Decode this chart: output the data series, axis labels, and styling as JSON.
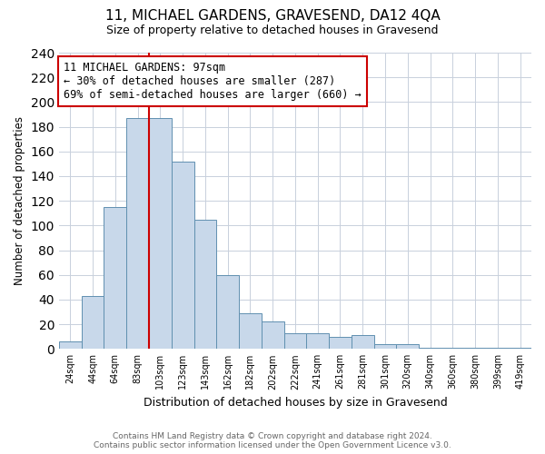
{
  "title": "11, MICHAEL GARDENS, GRAVESEND, DA12 4QA",
  "subtitle": "Size of property relative to detached houses in Gravesend",
  "xlabel": "Distribution of detached houses by size in Gravesend",
  "ylabel": "Number of detached properties",
  "categories": [
    "24sqm",
    "44sqm",
    "64sqm",
    "83sqm",
    "103sqm",
    "123sqm",
    "143sqm",
    "162sqm",
    "182sqm",
    "202sqm",
    "222sqm",
    "241sqm",
    "261sqm",
    "281sqm",
    "301sqm",
    "320sqm",
    "340sqm",
    "360sqm",
    "380sqm",
    "399sqm",
    "419sqm"
  ],
  "values": [
    6,
    43,
    115,
    187,
    187,
    152,
    105,
    60,
    29,
    22,
    13,
    13,
    10,
    11,
    4,
    4,
    1,
    1,
    1,
    1,
    1
  ],
  "bar_color": "#c8d8ea",
  "bar_edge_color": "#6090b0",
  "reference_line_x": 3.5,
  "reference_line_color": "#cc0000",
  "annotation_text": "11 MICHAEL GARDENS: 97sqm\n← 30% of detached houses are smaller (287)\n69% of semi-detached houses are larger (660) →",
  "annotation_box_color": "#ffffff",
  "annotation_box_edge_color": "#cc0000",
  "ylim": [
    0,
    240
  ],
  "yticks": [
    0,
    20,
    40,
    60,
    80,
    100,
    120,
    140,
    160,
    180,
    200,
    220,
    240
  ],
  "footer_line1": "Contains HM Land Registry data © Crown copyright and database right 2024.",
  "footer_line2": "Contains public sector information licensed under the Open Government Licence v3.0.",
  "background_color": "#ffffff",
  "grid_color": "#c8d0dc"
}
